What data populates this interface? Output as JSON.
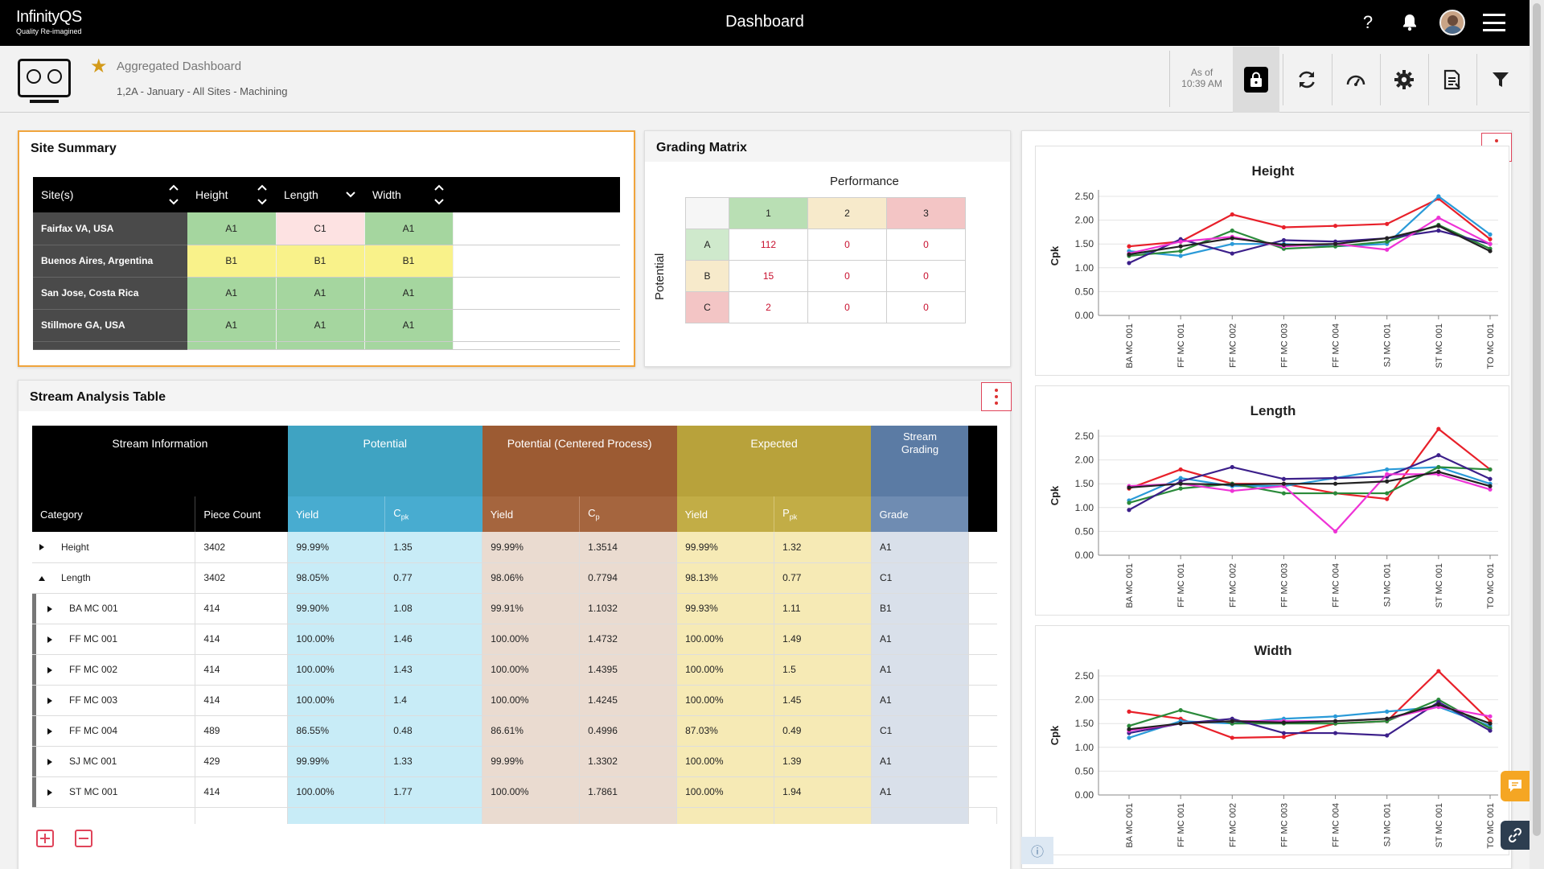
{
  "app": {
    "logo_name": "InfinityQS",
    "logo_tag": "Quality Re-imagined",
    "title": "Dashboard",
    "help_label": "?"
  },
  "dashboard": {
    "title": "Aggregated Dashboard",
    "subtitle": "1,2A - January - All Sites - Machining",
    "asof_label": "As of",
    "asof_time": "10:39 AM"
  },
  "site_summary": {
    "title": "Site Summary",
    "columns": [
      "Site(s)",
      "Height",
      "Length",
      "Width"
    ],
    "rows": [
      {
        "site": "Fairfax VA, USA",
        "grades": [
          "A1",
          "C1",
          "A1"
        ]
      },
      {
        "site": "Buenos Aires, Argentina",
        "grades": [
          "B1",
          "B1",
          "B1"
        ]
      },
      {
        "site": "San Jose, Costa Rica",
        "grades": [
          "A1",
          "A1",
          "A1"
        ]
      },
      {
        "site": "Stillmore GA, USA",
        "grades": [
          "A1",
          "A1",
          "A1"
        ]
      }
    ]
  },
  "grading_matrix": {
    "title": "Grading Matrix",
    "performance_label": "Performance",
    "potential_label": "Potential",
    "perf_headers": [
      "1",
      "2",
      "3"
    ],
    "rows": [
      {
        "label": "A",
        "values": [
          "112",
          "0",
          "0"
        ]
      },
      {
        "label": "B",
        "values": [
          "15",
          "0",
          "0"
        ]
      },
      {
        "label": "C",
        "values": [
          "2",
          "0",
          "0"
        ]
      }
    ]
  },
  "stream": {
    "title": "Stream Analysis Table",
    "groups": [
      "Stream Information",
      "Potential",
      "Potential (Centered Process)",
      "Expected",
      "Stream Grading"
    ],
    "col_category": "Category",
    "col_piece": "Piece Count",
    "col_yield": "Yield",
    "col_cpk_main": "C",
    "col_cpk_sub": "pk",
    "col_cp_main": "C",
    "col_cp_sub": "p",
    "col_ppk_main": "P",
    "col_ppk_sub": "pk",
    "col_grade": "Grade",
    "rows": [
      {
        "cat": "Height",
        "level": 0,
        "open": false,
        "piece": "3402",
        "py": "99.99%",
        "cpk": "1.35",
        "cy": "99.99%",
        "cp": "1.3514",
        "ey": "99.99%",
        "ppk": "1.32",
        "grade": "A1"
      },
      {
        "cat": "Length",
        "level": 0,
        "open": true,
        "piece": "3402",
        "py": "98.05%",
        "cpk": "0.77",
        "cy": "98.06%",
        "cp": "0.7794",
        "ey": "98.13%",
        "ppk": "0.77",
        "grade": "C1"
      },
      {
        "cat": "BA MC 001",
        "level": 1,
        "open": false,
        "piece": "414",
        "py": "99.90%",
        "cpk": "1.08",
        "cy": "99.91%",
        "cp": "1.1032",
        "ey": "99.93%",
        "ppk": "1.11",
        "grade": "B1"
      },
      {
        "cat": "FF MC 001",
        "level": 1,
        "open": false,
        "piece": "414",
        "py": "100.00%",
        "cpk": "1.46",
        "cy": "100.00%",
        "cp": "1.4732",
        "ey": "100.00%",
        "ppk": "1.49",
        "grade": "A1"
      },
      {
        "cat": "FF MC 002",
        "level": 1,
        "open": false,
        "piece": "414",
        "py": "100.00%",
        "cpk": "1.43",
        "cy": "100.00%",
        "cp": "1.4395",
        "ey": "100.00%",
        "ppk": "1.5",
        "grade": "A1"
      },
      {
        "cat": "FF MC 003",
        "level": 1,
        "open": false,
        "piece": "414",
        "py": "100.00%",
        "cpk": "1.4",
        "cy": "100.00%",
        "cp": "1.4245",
        "ey": "100.00%",
        "ppk": "1.45",
        "grade": "A1"
      },
      {
        "cat": "FF MC 004",
        "level": 1,
        "open": false,
        "piece": "489",
        "py": "86.55%",
        "cpk": "0.48",
        "cy": "86.61%",
        "cp": "0.4996",
        "ey": "87.03%",
        "ppk": "0.49",
        "grade": "C1"
      },
      {
        "cat": "SJ MC 001",
        "level": 1,
        "open": false,
        "piece": "429",
        "py": "99.99%",
        "cpk": "1.33",
        "cy": "99.99%",
        "cp": "1.3302",
        "ey": "100.00%",
        "ppk": "1.39",
        "grade": "A1"
      },
      {
        "cat": "ST MC 001",
        "level": 1,
        "open": false,
        "piece": "414",
        "py": "100.00%",
        "cpk": "1.77",
        "cy": "100.00%",
        "cp": "1.7861",
        "ey": "100.00%",
        "ppk": "1.94",
        "grade": "A1"
      }
    ]
  },
  "colors": {
    "grade_green": "#a5d69f",
    "grade_yellow": "#f9f28a",
    "grade_pink": "#fde2e2",
    "potential": "#3fa3c2",
    "potential_light": "#c8ecf7",
    "centered": "#9c5b33",
    "centered_light": "#eadbd0",
    "expected": "#b8a23b",
    "expected_light": "#f6eab5",
    "grading": "#5b7ba4",
    "grading_light": "#d9e0ea"
  },
  "chart_data": [
    {
      "type": "line",
      "title": "Height",
      "ylabel": "Cpk",
      "xlabel": "",
      "ylim": [
        0,
        2.5
      ],
      "yticks": [
        "0.00",
        "0.50",
        "1.00",
        "1.50",
        "2.00",
        "2.50"
      ],
      "categories": [
        "BA MC 001",
        "FF MC 001",
        "FF MC 002",
        "FF MC 003",
        "FF MC 004",
        "SJ MC 001",
        "ST MC 001",
        "TO MC 001"
      ],
      "series": [
        {
          "color": "#e8202a",
          "values": [
            1.45,
            1.55,
            2.12,
            1.85,
            1.88,
            1.92,
            2.45,
            1.6
          ]
        },
        {
          "color": "#2a9ad8",
          "values": [
            1.35,
            1.25,
            1.5,
            1.5,
            1.45,
            1.5,
            2.5,
            1.7
          ]
        },
        {
          "color": "#2a8a3a",
          "values": [
            1.25,
            1.35,
            1.78,
            1.4,
            1.45,
            1.55,
            1.9,
            1.4
          ]
        },
        {
          "color": "#3c1f8a",
          "values": [
            1.1,
            1.6,
            1.3,
            1.58,
            1.55,
            1.62,
            1.78,
            1.5
          ]
        },
        {
          "color": "#ee33d6",
          "values": [
            1.3,
            1.55,
            1.65,
            1.45,
            1.5,
            1.38,
            2.05,
            1.5
          ]
        },
        {
          "color": "#222222",
          "values": [
            1.28,
            1.45,
            1.62,
            1.48,
            1.5,
            1.62,
            1.88,
            1.35
          ]
        }
      ]
    },
    {
      "type": "line",
      "title": "Length",
      "ylabel": "Cpk",
      "xlabel": "",
      "ylim": [
        0,
        2.5
      ],
      "yticks": [
        "0.00",
        "0.50",
        "1.00",
        "1.50",
        "2.00",
        "2.50"
      ],
      "categories": [
        "BA MC 001",
        "FF MC 001",
        "FF MC 002",
        "FF MC 003",
        "FF MC 004",
        "SJ MC 001",
        "ST MC 001",
        "TO MC 001"
      ],
      "series": [
        {
          "color": "#e8202a",
          "values": [
            1.4,
            1.8,
            1.5,
            1.5,
            1.3,
            1.18,
            2.65,
            1.8
          ]
        },
        {
          "color": "#2a9ad8",
          "values": [
            1.15,
            1.62,
            1.45,
            1.45,
            1.62,
            1.8,
            1.85,
            1.5
          ]
        },
        {
          "color": "#2a8a3a",
          "values": [
            1.1,
            1.4,
            1.5,
            1.3,
            1.3,
            1.3,
            1.85,
            1.8
          ]
        },
        {
          "color": "#3c1f8a",
          "values": [
            0.95,
            1.55,
            1.85,
            1.6,
            1.62,
            1.65,
            2.1,
            1.6
          ]
        },
        {
          "color": "#ee33d6",
          "values": [
            1.45,
            1.5,
            1.35,
            1.45,
            0.5,
            1.7,
            1.7,
            1.38
          ]
        },
        {
          "color": "#222222",
          "values": [
            1.42,
            1.5,
            1.48,
            1.5,
            1.5,
            1.55,
            1.75,
            1.45
          ]
        }
      ]
    },
    {
      "type": "line",
      "title": "Width",
      "ylabel": "Cpk",
      "xlabel": "",
      "ylim": [
        0,
        2.5
      ],
      "yticks": [
        "0.00",
        "0.50",
        "1.00",
        "1.50",
        "2.00",
        "2.50"
      ],
      "categories": [
        "BA MC 001",
        "FF MC 001",
        "FF MC 002",
        "FF MC 003",
        "FF MC 004",
        "SJ MC 001",
        "ST MC 001",
        "TO MC 001"
      ],
      "series": [
        {
          "color": "#e8202a",
          "values": [
            1.75,
            1.6,
            1.2,
            1.22,
            1.5,
            1.55,
            2.6,
            1.55
          ]
        },
        {
          "color": "#2a9ad8",
          "values": [
            1.2,
            1.55,
            1.5,
            1.6,
            1.65,
            1.75,
            1.85,
            1.45
          ]
        },
        {
          "color": "#2a8a3a",
          "values": [
            1.45,
            1.78,
            1.5,
            1.5,
            1.5,
            1.55,
            2.0,
            1.4
          ]
        },
        {
          "color": "#3c1f8a",
          "values": [
            1.3,
            1.5,
            1.6,
            1.3,
            1.3,
            1.25,
            1.95,
            1.35
          ]
        },
        {
          "color": "#ee33d6",
          "values": [
            1.35,
            1.5,
            1.55,
            1.55,
            1.55,
            1.6,
            1.85,
            1.65
          ]
        },
        {
          "color": "#222222",
          "values": [
            1.38,
            1.5,
            1.55,
            1.52,
            1.55,
            1.6,
            1.9,
            1.5
          ]
        }
      ]
    }
  ]
}
